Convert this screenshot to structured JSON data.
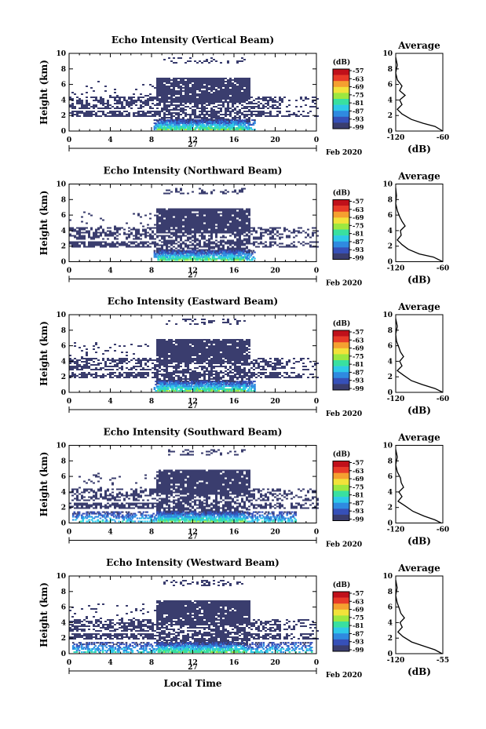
{
  "chart_data": [
    {
      "type": "heatmap",
      "title": "Echo Intensity (Vertical Beam)",
      "ylabel": "Height (km)",
      "xticks": [
        "0",
        "4",
        "8",
        "12",
        "16",
        "20",
        "0"
      ],
      "yticks": [
        "0",
        "2",
        "4",
        "6",
        "8",
        "10"
      ],
      "xlim": [
        0,
        24
      ],
      "ylim": [
        0,
        10
      ],
      "date_day": "27",
      "date_month": "Feb 2020",
      "colorbar": {
        "unit": "(dB)",
        "ticks": [
          "-57",
          "-63",
          "-69",
          "-75",
          "-81",
          "-87",
          "-93",
          "-99"
        ]
      },
      "average": {
        "title": "Average",
        "xlabel": "(dB)",
        "xticks": [
          "-120",
          "-60"
        ],
        "yticks": [
          "0",
          "2",
          "4",
          "6",
          "8",
          "10"
        ],
        "xlim": [
          -120,
          -60
        ],
        "profile": [
          [
            -60,
            0
          ],
          [
            -70,
            0.6
          ],
          [
            -85,
            1
          ],
          [
            -100,
            1.5
          ],
          [
            -112,
            2.2
          ],
          [
            -118,
            2.8
          ],
          [
            -112,
            3.4
          ],
          [
            -115,
            4
          ],
          [
            -108,
            4.6
          ],
          [
            -115,
            5.2
          ],
          [
            -112,
            5.8
          ],
          [
            -118,
            6.6
          ],
          [
            -120,
            7.5
          ],
          [
            -118,
            8.5
          ],
          [
            -120,
            9.5
          ]
        ]
      }
    },
    {
      "type": "heatmap",
      "title": "Echo Intensity (Northward Beam)",
      "ylabel": "Height (km)",
      "xticks": [
        "0",
        "4",
        "8",
        "12",
        "16",
        "20",
        "0"
      ],
      "yticks": [
        "0",
        "2",
        "4",
        "6",
        "8",
        "10"
      ],
      "xlim": [
        0,
        24
      ],
      "ylim": [
        0,
        10
      ],
      "date_day": "27",
      "date_month": "Feb 2020",
      "colorbar": {
        "unit": "(dB)",
        "ticks": [
          "-57",
          "-63",
          "-69",
          "-75",
          "-81",
          "-87",
          "-93",
          "-99"
        ]
      },
      "average": {
        "title": "Average",
        "xlabel": "(dB)",
        "xticks": [
          "-120",
          "-60"
        ],
        "yticks": [
          "0",
          "2",
          "4",
          "6",
          "8",
          "10"
        ],
        "xlim": [
          -120,
          -60
        ],
        "profile": [
          [
            -60,
            0
          ],
          [
            -72,
            0.6
          ],
          [
            -90,
            1
          ],
          [
            -104,
            1.6
          ],
          [
            -112,
            2.2
          ],
          [
            -118,
            2.8
          ],
          [
            -113,
            3.4
          ],
          [
            -114,
            4
          ],
          [
            -108,
            4.6
          ],
          [
            -112,
            5.2
          ],
          [
            -115,
            5.8
          ],
          [
            -118,
            6.6
          ],
          [
            -120,
            7.5
          ],
          [
            -119,
            8.5
          ],
          [
            -120,
            9.5
          ]
        ]
      }
    },
    {
      "type": "heatmap",
      "title": "Echo Intensity (Eastward Beam)",
      "ylabel": "Height (km)",
      "xticks": [
        "0",
        "4",
        "8",
        "12",
        "16",
        "20",
        "0"
      ],
      "yticks": [
        "0",
        "2",
        "4",
        "6",
        "8",
        "10"
      ],
      "xlim": [
        0,
        24
      ],
      "ylim": [
        0,
        10
      ],
      "date_day": "27",
      "date_month": "Feb 2020",
      "colorbar": {
        "unit": "(dB)",
        "ticks": [
          "-57",
          "-63",
          "-69",
          "-75",
          "-81",
          "-87",
          "-93",
          "-99"
        ]
      },
      "average": {
        "title": "Average",
        "xlabel": "(dB)",
        "xticks": [
          "-120",
          "-60"
        ],
        "yticks": [
          "0",
          "2",
          "4",
          "6",
          "8",
          "10"
        ],
        "xlim": [
          -120,
          -60
        ],
        "profile": [
          [
            -60,
            0
          ],
          [
            -70,
            0.5
          ],
          [
            -86,
            1
          ],
          [
            -100,
            1.5
          ],
          [
            -110,
            2.2
          ],
          [
            -118,
            2.8
          ],
          [
            -112,
            3.4
          ],
          [
            -115,
            4
          ],
          [
            -110,
            4.6
          ],
          [
            -114,
            5.2
          ],
          [
            -116,
            5.8
          ],
          [
            -119,
            6.6
          ],
          [
            -120,
            7.5
          ],
          [
            -118,
            8.5
          ],
          [
            -120,
            9.5
          ]
        ]
      }
    },
    {
      "type": "heatmap",
      "title": "Echo Intensity (Southward Beam)",
      "ylabel": "Height (km)",
      "xticks": [
        "0",
        "4",
        "8",
        "12",
        "16",
        "20",
        "0"
      ],
      "yticks": [
        "0",
        "2",
        "4",
        "6",
        "8",
        "10"
      ],
      "xlim": [
        0,
        24
      ],
      "ylim": [
        0,
        10
      ],
      "date_day": "27",
      "date_month": "Feb 2020",
      "colorbar": {
        "unit": "(dB)",
        "ticks": [
          "-57",
          "-63",
          "-69",
          "-75",
          "-81",
          "-87",
          "-93",
          "-99"
        ]
      },
      "average": {
        "title": "Average",
        "xlabel": "(dB)",
        "xticks": [
          "-120",
          "-60"
        ],
        "yticks": [
          "0",
          "2",
          "4",
          "6",
          "8",
          "10"
        ],
        "xlim": [
          -120,
          -60
        ],
        "profile": [
          [
            -62,
            0
          ],
          [
            -70,
            0.4
          ],
          [
            -84,
            0.9
          ],
          [
            -98,
            1.5
          ],
          [
            -108,
            2.2
          ],
          [
            -117,
            2.8
          ],
          [
            -112,
            3.4
          ],
          [
            -116,
            4
          ],
          [
            -110,
            4.6
          ],
          [
            -113,
            5.2
          ],
          [
            -114,
            5.8
          ],
          [
            -118,
            6.6
          ],
          [
            -120,
            7.5
          ],
          [
            -118,
            8.5
          ],
          [
            -120,
            9.5
          ]
        ]
      }
    },
    {
      "type": "heatmap",
      "title": "Echo Intensity (Westward Beam)",
      "ylabel": "Height (km)",
      "xticks": [
        "0",
        "4",
        "8",
        "12",
        "16",
        "20",
        "0"
      ],
      "yticks": [
        "0",
        "2",
        "4",
        "6",
        "8",
        "10"
      ],
      "xlim": [
        0,
        24
      ],
      "ylim": [
        0,
        10
      ],
      "date_day": "27",
      "date_month": "Feb 2020",
      "xlabel": "Local Time",
      "colorbar": {
        "unit": "(dB)",
        "ticks": [
          "-57",
          "-63",
          "-69",
          "-75",
          "-81",
          "-87",
          "-93",
          "-99"
        ]
      },
      "average": {
        "title": "Average",
        "xlabel": "(dB)",
        "xticks": [
          "-120",
          "-55"
        ],
        "yticks": [
          "0",
          "2",
          "4",
          "6",
          "8",
          "10"
        ],
        "xlim": [
          -120,
          -55
        ],
        "profile": [
          [
            -56,
            0
          ],
          [
            -66,
            0.5
          ],
          [
            -82,
            1
          ],
          [
            -98,
            1.5
          ],
          [
            -110,
            2.2
          ],
          [
            -117,
            2.8
          ],
          [
            -111,
            3.4
          ],
          [
            -114,
            4
          ],
          [
            -108,
            4.6
          ],
          [
            -113,
            5.2
          ],
          [
            -115,
            5.8
          ],
          [
            -118,
            6.6
          ],
          [
            -120,
            7.5
          ],
          [
            -118,
            8.5
          ],
          [
            -120,
            9.5
          ]
        ]
      }
    }
  ],
  "colors": {
    "echo_dark": "#3a3d6e",
    "colorbar": [
      "#3a3d6e",
      "#3650b8",
      "#2f8ae0",
      "#2ec9e8",
      "#39e0a0",
      "#9ce840",
      "#f2e23a",
      "#f5a030",
      "#e83a28",
      "#c0101a"
    ]
  }
}
